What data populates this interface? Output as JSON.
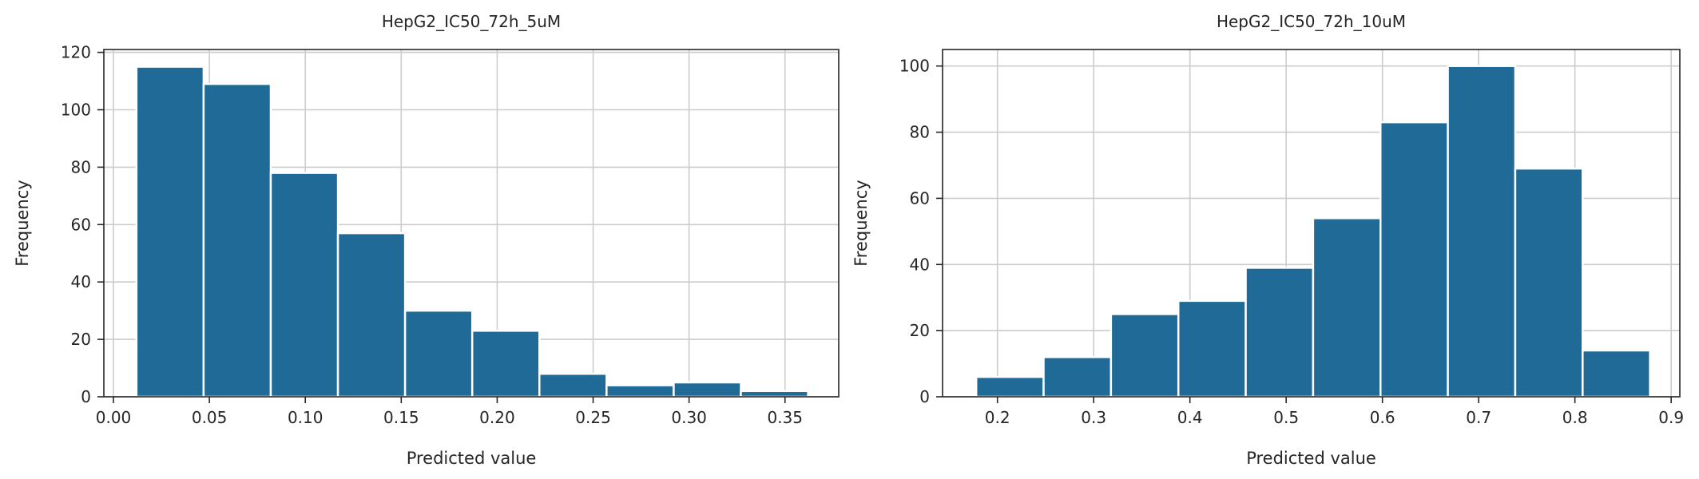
{
  "chart_data": [
    {
      "type": "bar",
      "title": "HepG2_IC50_72h_5uM",
      "xlabel": "Predicted value",
      "ylabel": "Frequency",
      "xlim": [
        -0.005,
        0.378
      ],
      "ylim": [
        0,
        121
      ],
      "xticks": [
        0.0,
        0.05,
        0.1,
        0.15,
        0.2,
        0.25,
        0.3,
        0.35
      ],
      "xtick_labels": [
        "0.00",
        "0.05",
        "0.10",
        "0.15",
        "0.20",
        "0.25",
        "0.30",
        "0.35"
      ],
      "yticks": [
        0,
        20,
        40,
        60,
        80,
        100,
        120
      ],
      "ytick_labels": [
        "0",
        "20",
        "40",
        "60",
        "80",
        "100",
        "120"
      ],
      "bin_edges": [
        0.012,
        0.047,
        0.082,
        0.117,
        0.152,
        0.187,
        0.222,
        0.257,
        0.292,
        0.327,
        0.362
      ],
      "values": [
        115,
        109,
        78,
        57,
        30,
        23,
        8,
        4,
        5,
        2
      ],
      "grid": true,
      "bar_color": "#1f6a96"
    },
    {
      "type": "bar",
      "title": "HepG2_IC50_72h_10uM",
      "xlabel": "Predicted value",
      "ylabel": "Frequency",
      "xlim": [
        0.143,
        0.909
      ],
      "ylim": [
        0,
        105
      ],
      "xticks": [
        0.2,
        0.3,
        0.4,
        0.5,
        0.6,
        0.7,
        0.8,
        0.9
      ],
      "xtick_labels": [
        "0.2",
        "0.3",
        "0.4",
        "0.5",
        "0.6",
        "0.7",
        "0.8",
        "0.9"
      ],
      "yticks": [
        0,
        20,
        40,
        60,
        80,
        100
      ],
      "ytick_labels": [
        "0",
        "20",
        "40",
        "60",
        "80",
        "100"
      ],
      "bin_edges": [
        0.178,
        0.248,
        0.318,
        0.388,
        0.458,
        0.528,
        0.598,
        0.668,
        0.738,
        0.808,
        0.878
      ],
      "values": [
        6,
        12,
        25,
        29,
        39,
        54,
        83,
        100,
        69,
        14
      ],
      "grid": true,
      "bar_color": "#1f6a96"
    }
  ]
}
